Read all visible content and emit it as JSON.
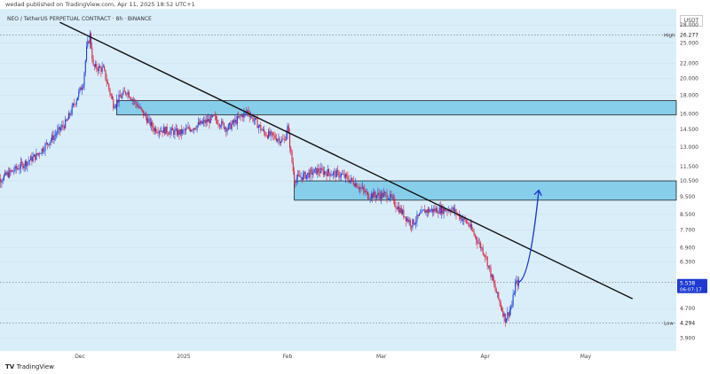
{
  "header": {
    "published": "wedad published on TradingView.com, Apr 11, 2025 18:52 UTC+1"
  },
  "symbol_line": "NEO / TetherUS PERPETUAL CONTRACT · 8h · BINANCE",
  "price_scale": {
    "currency": "USDT"
  },
  "footer": {
    "logo_text": "TradingView"
  },
  "colors": {
    "bull": "#1e40d8",
    "bear": "#d4213d",
    "zone_fill": "#87ceeb",
    "zone_border": "#222222",
    "trendline": "#111111",
    "arrow": "#1e3ad0",
    "plot_bg": "#daeefa",
    "last_price_bg": "#1e3ad0"
  },
  "chart_data": {
    "type": "candlestick",
    "x_axis": {
      "ticks": [
        "Dec",
        "2025",
        "Feb",
        "Mar",
        "Apr",
        "May"
      ]
    },
    "y_axis": {
      "scale": "log",
      "range": [
        3.6,
        31
      ],
      "ticks": [
        {
          "value": 28,
          "label": "28.000"
        },
        {
          "value": 25,
          "label": "25.000"
        },
        {
          "value": 22,
          "label": "22.000"
        },
        {
          "value": 20,
          "label": "20.000"
        },
        {
          "value": 18,
          "label": "18.000"
        },
        {
          "value": 16,
          "label": "16.000"
        },
        {
          "value": 14.5,
          "label": "14.500"
        },
        {
          "value": 13,
          "label": "13.000"
        },
        {
          "value": 11.5,
          "label": "11.500"
        },
        {
          "value": 10.5,
          "label": "10.500"
        },
        {
          "value": 9.5,
          "label": "9.500"
        },
        {
          "value": 8.5,
          "label": "8.500"
        },
        {
          "value": 7.7,
          "label": "7.700"
        },
        {
          "value": 6.9,
          "label": "6.900"
        },
        {
          "value": 6.3,
          "label": "6.300"
        },
        {
          "value": 4.7,
          "label": "4.700"
        },
        {
          "value": 3.9,
          "label": "3.900"
        }
      ]
    },
    "markers": [
      {
        "name": "High",
        "value": 26.277,
        "label": "26.277"
      },
      {
        "name": "Low",
        "value": 4.294,
        "label": "4.294"
      }
    ],
    "last_price": {
      "value": 5.538,
      "label": "5.538",
      "countdown": "06:07:17"
    },
    "path_anchors": [
      {
        "t": "2024-11-05",
        "price": 10.3
      },
      {
        "t": "2024-11-18",
        "price": 12.3
      },
      {
        "t": "2024-11-27",
        "price": 15.2
      },
      {
        "t": "2024-12-02",
        "price": 19.5
      },
      {
        "t": "2024-12-03",
        "price": 24.0
      },
      {
        "t": "2024-12-04",
        "price": 26.277
      },
      {
        "t": "2024-12-05",
        "price": 21.5
      },
      {
        "t": "2024-12-08",
        "price": 21.2
      },
      {
        "t": "2024-12-11",
        "price": 17.0
      },
      {
        "t": "2024-12-15",
        "price": 18.5
      },
      {
        "t": "2024-12-20",
        "price": 16.0
      },
      {
        "t": "2024-12-23",
        "price": 14.6
      },
      {
        "t": "2024-12-31",
        "price": 14.2
      },
      {
        "t": "2025-01-10",
        "price": 15.6
      },
      {
        "t": "2025-01-14",
        "price": 14.6
      },
      {
        "t": "2025-01-20",
        "price": 16.3
      },
      {
        "t": "2025-01-25",
        "price": 14.2
      },
      {
        "t": "2025-01-31",
        "price": 13.5
      },
      {
        "t": "2025-02-01",
        "price": 14.7
      },
      {
        "t": "2025-02-03",
        "price": 10.6
      },
      {
        "t": "2025-02-10",
        "price": 11.2
      },
      {
        "t": "2025-02-17",
        "price": 10.9
      },
      {
        "t": "2025-02-21",
        "price": 10.4
      },
      {
        "t": "2025-02-25",
        "price": 9.6
      },
      {
        "t": "2025-03-03",
        "price": 9.6
      },
      {
        "t": "2025-03-10",
        "price": 8.0
      },
      {
        "t": "2025-03-14",
        "price": 8.7
      },
      {
        "t": "2025-03-22",
        "price": 8.8
      },
      {
        "t": "2025-03-27",
        "price": 8.0
      },
      {
        "t": "2025-04-01",
        "price": 6.6
      },
      {
        "t": "2025-04-04",
        "price": 5.3
      },
      {
        "t": "2025-04-07",
        "price": 4.4
      },
      {
        "t": "2025-04-09",
        "price": 4.8
      },
      {
        "t": "2025-04-10",
        "price": 5.5
      },
      {
        "t": "2025-04-11",
        "price": 5.538
      }
    ],
    "zones": [
      {
        "low": 15.9,
        "high": 17.4,
        "start": "2024-12-12"
      },
      {
        "low": 9.3,
        "high": 10.5,
        "start": "2025-02-03"
      }
    ],
    "trendline": {
      "from": {
        "t": "2024-11-25",
        "price": 28.5
      },
      "to": {
        "t": "2025-05-15",
        "price": 5.0
      }
    },
    "projection": {
      "from": {
        "t": "2025-04-11",
        "price": 5.55
      },
      "to": {
        "t": "2025-04-17",
        "price": 9.9
      }
    }
  }
}
